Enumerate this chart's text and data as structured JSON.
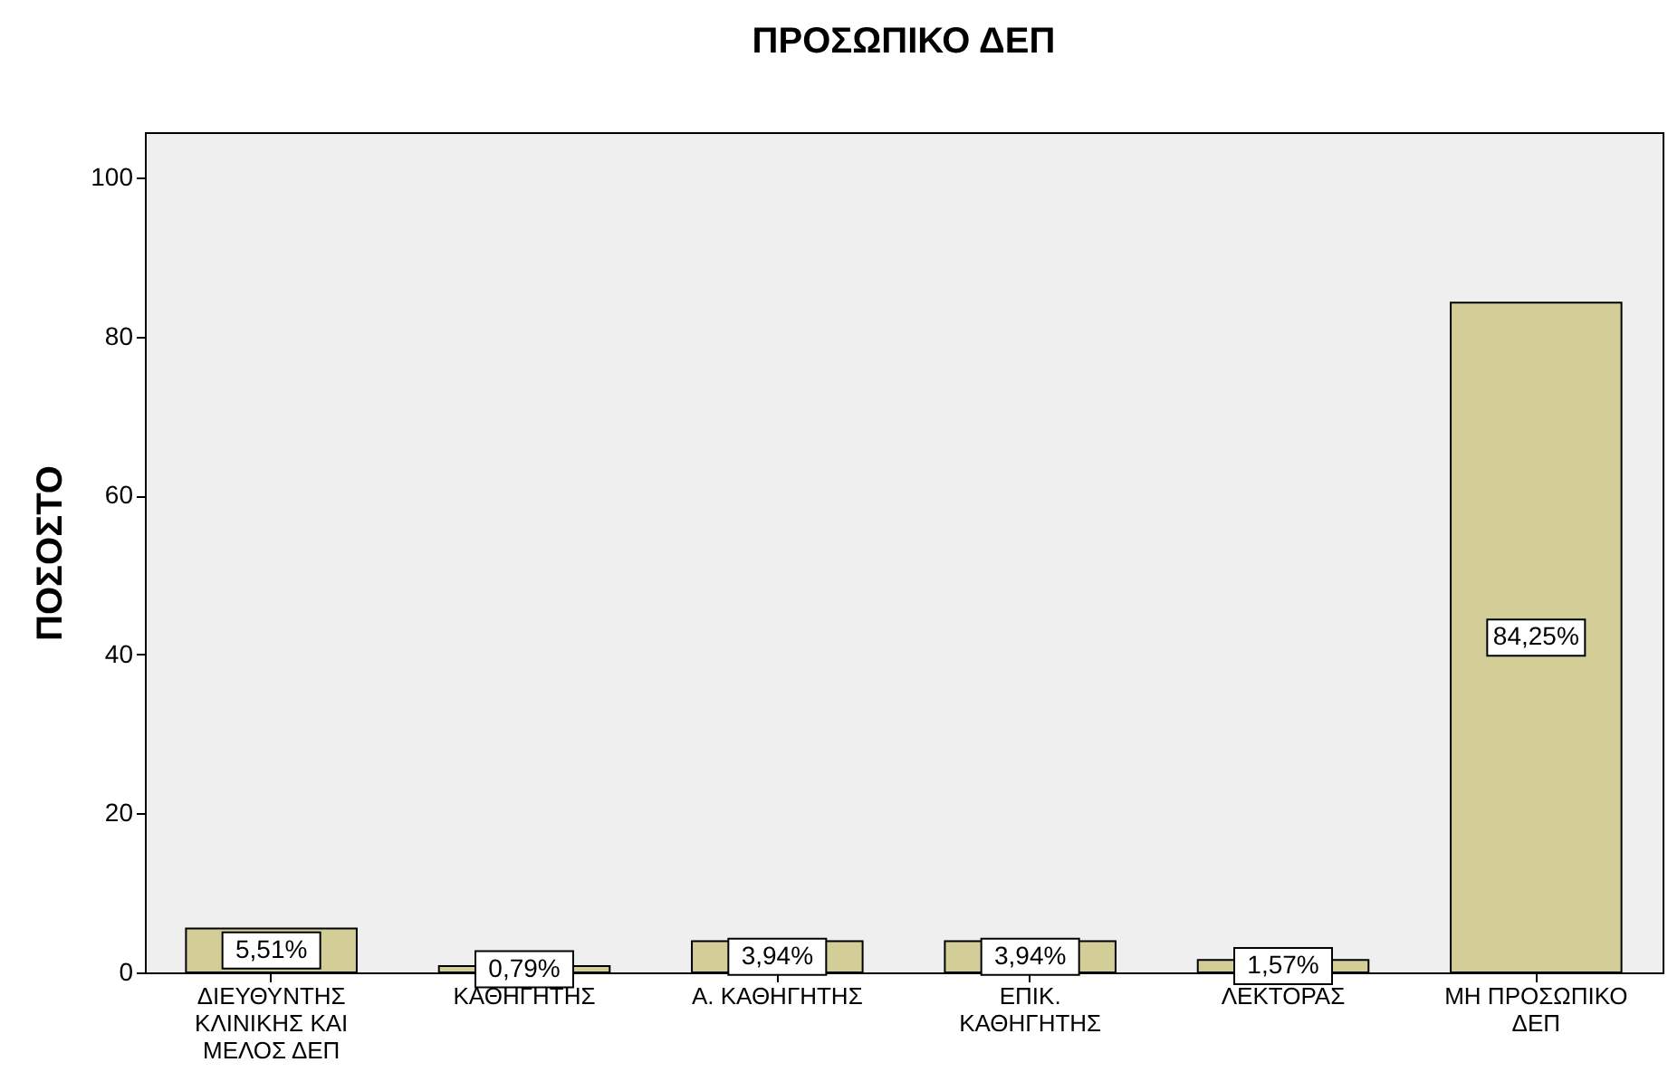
{
  "chart_data": {
    "type": "bar",
    "title": "ΠΡΟΣΩΠΙΚΟ ΔΕΠ",
    "ylabel": "ΠΟΣΟΣΤΟ",
    "categories": [
      "ΔΙΕΥΘΥΝΤΗΣ ΚΛΙΝΙΚΗΣ ΚΑΙ ΜΕΛΟΣ ΔΕΠ",
      "ΚΑΘΗΓΗΤΗΣ",
      "Α. ΚΑΘΗΓΗΤΗΣ",
      "ΕΠΙΚ. ΚΑΘΗΓΗΤΗΣ",
      "ΛΕΚΤΟΡΑΣ",
      "ΜΗ ΠΡΟΣΩΠΙΚΟ ΔΕΠ"
    ],
    "values": [
      5.51,
      0.79,
      3.94,
      3.94,
      1.57,
      84.25
    ],
    "value_labels": [
      "5,51%",
      "0,79%",
      "3,94%",
      "3,94%",
      "1,57%",
      "84,25%"
    ],
    "color": "#d3ce98",
    "ylim": [
      0,
      105.7
    ],
    "yticks": [
      0,
      20,
      40,
      60,
      80,
      100
    ],
    "grid": false
  }
}
